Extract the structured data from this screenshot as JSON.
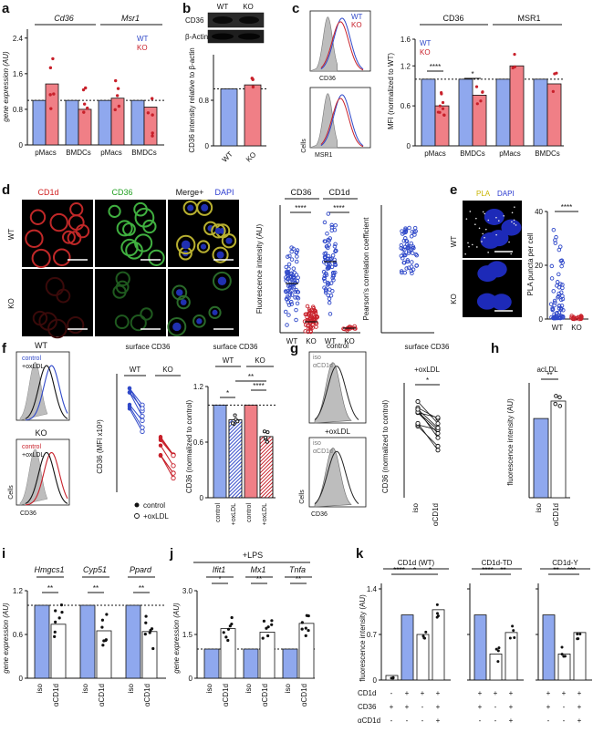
{
  "colors": {
    "wt": "#8fa8ee",
    "ko": "#f07f86",
    "wt_dark": "#3049c9",
    "ko_dark": "#c8202a",
    "white_bar": "#ffffff",
    "micro_bg": "#000000"
  },
  "panels": {
    "a": {
      "letter": "a",
      "ylabel": "gene expression (AU)",
      "genes": [
        "Cd36",
        "Msr1"
      ],
      "legend": [
        "WT",
        "KO"
      ],
      "groups": [
        "pMacs",
        "BMDCs",
        "pMacs",
        "BMDCs"
      ],
      "yticks": [
        "0",
        "0.8",
        "1.6",
        "2.4"
      ]
    },
    "b": {
      "letter": "b",
      "blot_header": [
        "WT",
        "KO"
      ],
      "blot_labels": [
        "CD36",
        "β-Actin"
      ],
      "ylabel": "CD36 intensity relative to β-actin",
      "yticks": [
        "0",
        "0.8"
      ],
      "xticks": [
        "WT",
        "KO"
      ]
    },
    "c": {
      "letter": "c",
      "hist_labels": [
        "CD36",
        "MSR1",
        "Cells"
      ],
      "legend": [
        "WT",
        "KO"
      ],
      "titles": [
        "CD36",
        "MSR1"
      ],
      "ylabel": "MFI (normalized to WT)",
      "yticks": [
        "0",
        "0.6",
        "1.2",
        "1.6"
      ],
      "groups": [
        "pMacs",
        "BMDCs",
        "pMacs",
        "BMDCs"
      ],
      "sig": [
        "****",
        "*"
      ]
    },
    "d": {
      "letter": "d",
      "col_titles": [
        "CD1d",
        "CD36",
        "Merge+",
        "DAPI"
      ],
      "row_labels": [
        "WT",
        "KO"
      ],
      "titles": [
        "CD36",
        "CD1d"
      ],
      "ylabel": "Fluorescence intensity (AU)",
      "ylabel2": "Pearson's correlation coefficient",
      "xticks": [
        "WT",
        "KO",
        "WT",
        "KO"
      ],
      "sig": [
        "****",
        "****"
      ]
    },
    "e": {
      "letter": "e",
      "col_titles": [
        "PLA",
        "DAPI"
      ],
      "row_labels": [
        "WT",
        "KO"
      ],
      "ylabel": "PLA puncta per cell",
      "yticks": [
        "0",
        "20",
        "40"
      ],
      "xticks": [
        "WT",
        "KO"
      ],
      "sig": "****"
    },
    "f": {
      "letter": "f",
      "hist_titles": [
        "WT",
        "KO"
      ],
      "legend_wt": [
        "control",
        "+oxLDL"
      ],
      "legend_ko": [
        "control",
        "+oxLDL"
      ],
      "xlabel": "CD36",
      "cells": "Cells",
      "mid_title": "surface CD36",
      "mid_groups": [
        "WT",
        "KO"
      ],
      "mid_ylabel": "CD36 (MFI x10³)",
      "mid_legend": [
        "control",
        "+oxLDL"
      ],
      "right_title": "surface CD36",
      "right_groups": [
        "WT",
        "KO"
      ],
      "right_ylabel": "CD36 (normalized to control)",
      "right_yticks": [
        "0",
        "0.6",
        "1.2"
      ],
      "right_xticks": [
        "control",
        "+oxLDL",
        "control",
        "+oxLDL"
      ],
      "sig": [
        "*",
        "**",
        "****"
      ]
    },
    "g": {
      "letter": "g",
      "hist_titles": [
        "control",
        "+oxLDL"
      ],
      "legend": [
        "iso",
        "αCD1d"
      ],
      "xlabel": "CD36",
      "cells": "Cells",
      "title": "surface CD36",
      "subtitle": "+oxLDL",
      "ylabel": "CD36 (normalized to control)",
      "xticks": [
        "iso",
        "αCD1d"
      ],
      "sig": "*"
    },
    "h": {
      "letter": "h",
      "title": "acLDL",
      "ylabel": "fluorescence intensity (AU)",
      "xticks": [
        "iso",
        "αCD1d"
      ],
      "sig": "**"
    },
    "i": {
      "letter": "i",
      "genes": [
        "Hmgcs1",
        "Cyp51",
        "Ppard"
      ],
      "ylabel": "gene expression (AU)",
      "yticks": [
        "0",
        "0.6",
        "1.2"
      ],
      "xticks": [
        "iso",
        "αCD1d"
      ],
      "sig": "**"
    },
    "j": {
      "letter": "j",
      "header": "+LPS",
      "genes": [
        "Ifit1",
        "Mx1",
        "Tnfa"
      ],
      "ylabel": "gene expression (AU)",
      "yticks": [
        "0",
        "1.5",
        "3.0"
      ],
      "xticks": [
        "iso",
        "αCD1d"
      ],
      "sig": [
        "*",
        "**",
        "**"
      ]
    },
    "k": {
      "letter": "k",
      "titles": [
        "CD1d (WT)",
        "CD1d-TD",
        "CD1d-Y"
      ],
      "ylabel": "fluorescence intensity (AU)",
      "yticks": [
        "0",
        "0.7",
        "1.4"
      ],
      "row_labels": [
        "CD1d",
        "CD36",
        "αCD1d"
      ],
      "sig1": [
        "****",
        "*",
        "*"
      ],
      "sig2": [
        "****",
        "**"
      ],
      "sig3": [
        "**",
        "***"
      ]
    }
  },
  "chart_data": [
    {
      "panel": "a",
      "type": "bar",
      "categories": [
        "pMacs Cd36",
        "BMDCs Cd36",
        "pMacs Msr1",
        "BMDCs Msr1"
      ],
      "series": [
        {
          "name": "WT",
          "values": [
            1.0,
            1.0,
            1.0,
            1.0
          ]
        },
        {
          "name": "KO",
          "values": [
            1.37,
            0.8,
            1.05,
            0.85
          ]
        }
      ],
      "ylim": [
        0,
        2.6
      ]
    },
    {
      "panel": "b",
      "type": "bar",
      "categories": [
        "WT",
        "KO"
      ],
      "values": [
        1.0,
        1.07
      ],
      "ylim": [
        0,
        1.6
      ]
    },
    {
      "panel": "c",
      "type": "bar",
      "categories": [
        "pMacs CD36",
        "BMDCs CD36",
        "pMacs MSR1",
        "BMDCs MSR1"
      ],
      "series": [
        {
          "name": "WT",
          "values": [
            1.0,
            1.0,
            1.0,
            1.0
          ]
        },
        {
          "name": "KO",
          "values": [
            0.6,
            0.76,
            1.2,
            0.93
          ]
        }
      ],
      "ylim": [
        0,
        1.6
      ]
    },
    {
      "panel": "d",
      "type": "scatter",
      "categories": [
        "CD36 WT",
        "CD36 KO",
        "CD1d WT",
        "CD1d KO"
      ],
      "values": [
        2.7,
        0.6,
        3.9,
        0.25
      ]
    },
    {
      "panel": "e",
      "type": "scatter",
      "categories": [
        "WT",
        "KO"
      ],
      "values": [
        3,
        0.5
      ],
      "ylim": [
        0,
        40
      ]
    },
    {
      "panel": "f-mid",
      "type": "line",
      "categories": [
        "control",
        "+oxLDL"
      ],
      "series": [
        {
          "name": "WT",
          "values": [
            1.9,
            1.6
          ]
        },
        {
          "name": "KO",
          "values": [
            1.15,
            0.85
          ]
        }
      ]
    },
    {
      "panel": "f-right",
      "type": "bar",
      "categories": [
        "WT control",
        "WT +oxLDL",
        "KO control",
        "KO +oxLDL"
      ],
      "values": [
        1.0,
        0.84,
        1.0,
        0.66
      ],
      "ylim": [
        0,
        1.2
      ]
    },
    {
      "panel": "g",
      "type": "line",
      "categories": [
        "iso",
        "αCD1d"
      ],
      "values": [
        0.88,
        0.8
      ]
    },
    {
      "panel": "h",
      "type": "bar",
      "categories": [
        "iso",
        "αCD1d"
      ],
      "values": [
        1.0,
        1.22
      ]
    },
    {
      "panel": "i",
      "type": "bar",
      "categories": [
        "Hmgcs1 iso",
        "Hmgcs1 αCD1d",
        "Cyp51 iso",
        "Cyp51 αCD1d",
        "Ppard iso",
        "Ppard αCD1d"
      ],
      "values": [
        1.0,
        0.74,
        1.0,
        0.65,
        1.0,
        0.64
      ],
      "ylim": [
        0,
        1.2
      ]
    },
    {
      "panel": "j",
      "type": "bar",
      "categories": [
        "Ifit1 iso",
        "Ifit1 αCD1d",
        "Mx1 iso",
        "Mx1 αCD1d",
        "Tnfa iso",
        "Tnfa αCD1d"
      ],
      "values": [
        1.0,
        1.7,
        1.0,
        1.58,
        1.0,
        1.88
      ],
      "ylim": [
        0,
        3.0
      ]
    },
    {
      "panel": "k",
      "type": "bar",
      "categories": [
        "CD1d(WT) 1",
        "CD1d(WT) 2",
        "CD1d(WT) 3",
        "CD1d(WT) 4",
        "CD1d-TD 1",
        "CD1d-TD 2",
        "CD1d-TD 3",
        "CD1d-Y 1",
        "CD1d-Y 2",
        "CD1d-Y 3"
      ],
      "values": [
        0.07,
        1.0,
        0.7,
        1.08,
        1.0,
        0.4,
        0.73,
        1.0,
        0.4,
        0.73
      ],
      "ylim": [
        0,
        1.4
      ]
    }
  ]
}
